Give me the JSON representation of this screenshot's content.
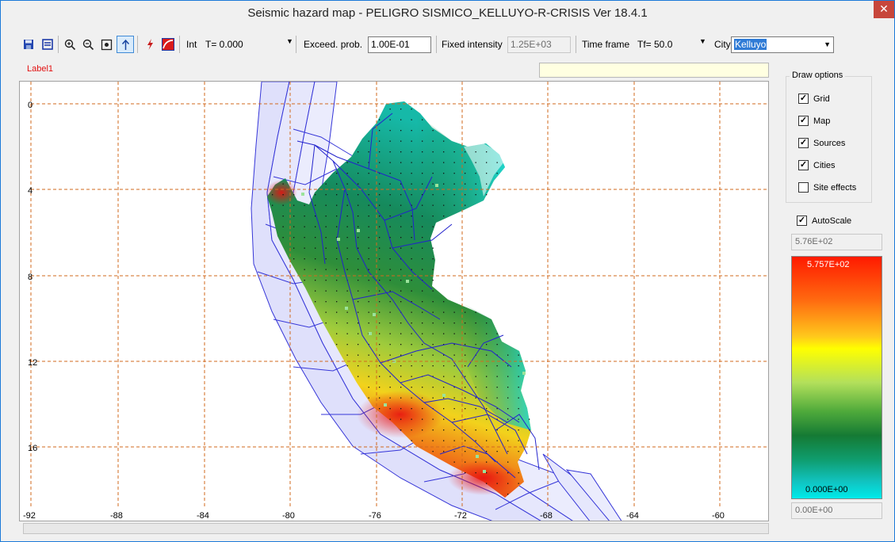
{
  "window": {
    "title": "Seismic hazard map - PELIGRO SISMICO_KELLUYO-R-CRISIS Ver 18.4.1",
    "close": "✕"
  },
  "toolbar": {
    "int_label": "Int",
    "int_value": "T= 0.000",
    "exceed_label": "Exceed. prob.",
    "exceed_value": "1.00E-01",
    "fixed_label": "Fixed intensity",
    "fixed_value": "1.25E+03",
    "timeframe_label": "Time frame",
    "timeframe_value": "Tf= 50.0",
    "city_label": "City",
    "city_value": "Kelluyo",
    "icons": [
      "save-icon",
      "list-icon",
      "zoom-in-icon",
      "zoom-out-icon",
      "zoom-fit-icon",
      "pointer-icon",
      "lightning-icon",
      "hazard-curve-icon"
    ]
  },
  "label1": "Label1",
  "map": {
    "x_ticks": [
      "-92",
      "-88",
      "-84",
      "-80",
      "-76",
      "-72",
      "-68",
      "-64",
      "-60"
    ],
    "y_ticks": [
      "0",
      "4",
      "8",
      "12",
      "16"
    ],
    "grid_color": "#d2691e",
    "source_color": "#2a2ad8"
  },
  "draw_options": {
    "title": "Draw options",
    "items": [
      {
        "label": "Grid",
        "checked": true
      },
      {
        "label": "Map",
        "checked": true
      },
      {
        "label": "Sources",
        "checked": true
      },
      {
        "label": "Cities",
        "checked": true
      },
      {
        "label": "Site effects",
        "checked": false
      }
    ]
  },
  "autoscale": {
    "label": "AutoScale",
    "checked": true
  },
  "scale": {
    "max_field": "5.76E+02",
    "top_label": "5.757E+02",
    "bottom_label": "0.000E+00",
    "min_field": "0.00E+00"
  }
}
